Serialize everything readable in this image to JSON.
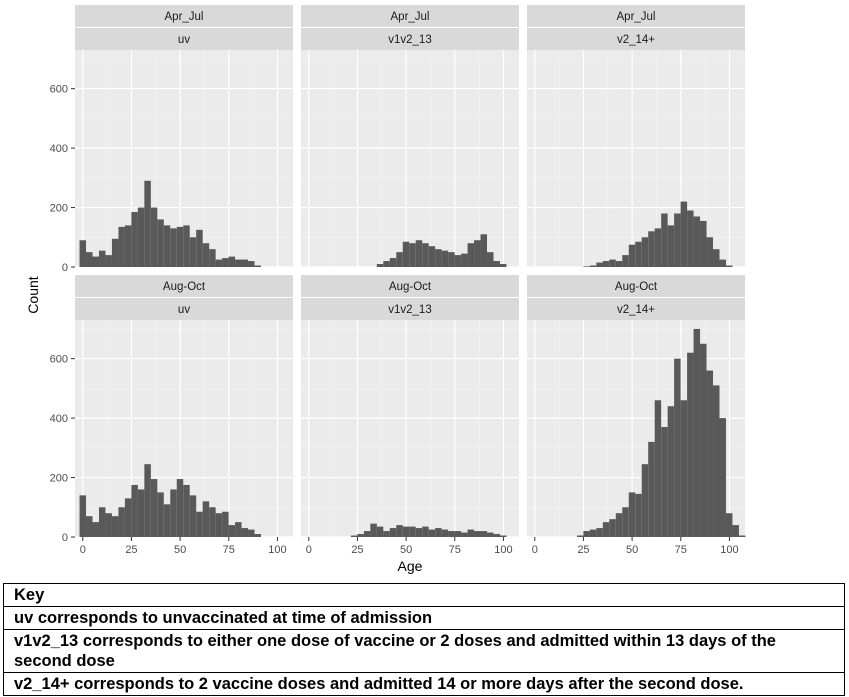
{
  "chart_data": {
    "type": "bar",
    "xlabel": "Age",
    "ylabel": "Count",
    "x_ticks": [
      0,
      25,
      50,
      75,
      100
    ],
    "y_ticks": [
      0,
      200,
      400,
      600
    ],
    "xlim": [
      -4,
      108
    ],
    "ylim": [
      0,
      730
    ],
    "bin_width": 3.33,
    "bin_start": -1.67,
    "grid": true,
    "panels": [
      {
        "period": "Apr_Jul",
        "group": "uv",
        "values": [
          90,
          50,
          35,
          55,
          40,
          95,
          135,
          140,
          185,
          200,
          290,
          200,
          160,
          140,
          130,
          135,
          140,
          100,
          125,
          80,
          60,
          25,
          30,
          35,
          25,
          25,
          20,
          5,
          0,
          0,
          0,
          0
        ]
      },
      {
        "period": "Apr_Jul",
        "group": "v1v2_13",
        "values": [
          0,
          0,
          0,
          0,
          0,
          0,
          0,
          0,
          0,
          0,
          0,
          10,
          20,
          30,
          50,
          85,
          80,
          90,
          80,
          70,
          60,
          55,
          50,
          40,
          45,
          80,
          90,
          110,
          50,
          20,
          10,
          0
        ]
      },
      {
        "period": "Apr_Jul",
        "group": "v2_14+",
        "values": [
          0,
          0,
          0,
          0,
          0,
          0,
          0,
          0,
          2,
          5,
          15,
          20,
          25,
          20,
          40,
          75,
          85,
          100,
          120,
          130,
          180,
          140,
          180,
          220,
          190,
          170,
          155,
          100,
          60,
          25,
          5,
          0
        ]
      },
      {
        "period": "Aug-Oct",
        "group": "uv",
        "values": [
          140,
          70,
          50,
          100,
          80,
          70,
          100,
          130,
          175,
          160,
          245,
          195,
          150,
          110,
          160,
          195,
          175,
          140,
          85,
          120,
          100,
          80,
          85,
          40,
          50,
          30,
          25,
          10,
          0,
          0,
          0,
          0
        ]
      },
      {
        "period": "Aug-Oct",
        "group": "v1v2_13",
        "values": [
          0,
          0,
          0,
          0,
          0,
          0,
          0,
          5,
          10,
          20,
          45,
          35,
          20,
          30,
          40,
          35,
          35,
          30,
          35,
          25,
          30,
          25,
          20,
          20,
          15,
          25,
          20,
          20,
          15,
          10,
          5,
          0
        ]
      },
      {
        "period": "Aug-Oct",
        "group": "v2_14+",
        "values": [
          0,
          0,
          0,
          0,
          0,
          0,
          0,
          5,
          20,
          25,
          30,
          50,
          60,
          80,
          100,
          150,
          145,
          245,
          320,
          460,
          370,
          440,
          600,
          460,
          620,
          700,
          650,
          560,
          510,
          400,
          80,
          40,
          5
        ]
      }
    ]
  },
  "key": {
    "title": "Key",
    "rows": [
      "uv corresponds to unvaccinated at time of admission",
      "v1v2_13 corresponds to either one dose of vaccine or 2 doses and admitted within 13 days of the second dose",
      "v2_14+ corresponds to 2 vaccine doses and admitted 14 or more days after the second dose."
    ]
  },
  "colors": {
    "panel_bg": "#ebebeb",
    "strip_bg": "#d9d9d9",
    "grid_major": "#ffffff",
    "bar_fill": "#595959",
    "axis_text": "#4d4d4d",
    "strip_text": "#1a1a1a"
  }
}
